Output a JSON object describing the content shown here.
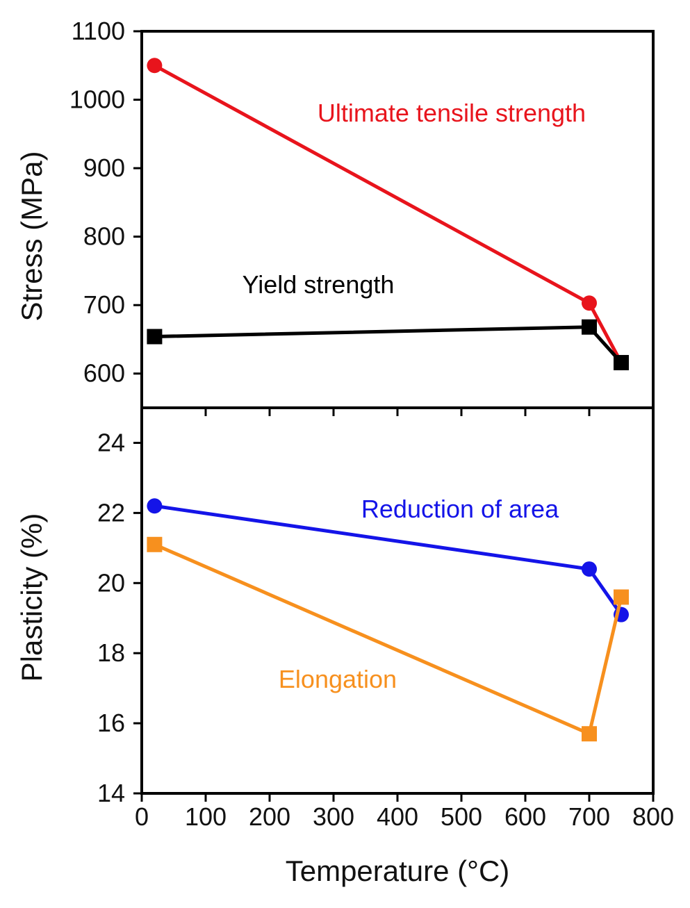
{
  "chart_data": [
    {
      "type": "line",
      "panel": "top",
      "title": "",
      "xlabel": "",
      "ylabel": "Stress (MPa)",
      "xlim": [
        0,
        800
      ],
      "ylim": [
        550,
        1100
      ],
      "y_ticks": [
        600,
        700,
        800,
        900,
        1000,
        1100
      ],
      "y_tick_labels": [
        "600",
        "700",
        "800",
        "900",
        "1000",
        "1100"
      ],
      "grid": false,
      "series": [
        {
          "name": "Ultimate tensile strength",
          "color": "#e8141c",
          "marker": "circle",
          "x": [
            20,
            700,
            750
          ],
          "y": [
            1050,
            703,
            616
          ],
          "annotation": "Ultimate tensile strength"
        },
        {
          "name": "Yield strength",
          "color": "#000000",
          "marker": "square",
          "x": [
            20,
            700,
            750
          ],
          "y": [
            654,
            668,
            616
          ],
          "annotation": "Yield strength"
        }
      ]
    },
    {
      "type": "line",
      "panel": "bottom",
      "title": "",
      "xlabel": "Temperature (°C)",
      "ylabel": "Plasticity (%)",
      "xlim": [
        0,
        800
      ],
      "ylim": [
        14,
        25
      ],
      "x_ticks": [
        0,
        100,
        200,
        300,
        400,
        500,
        600,
        700,
        800
      ],
      "x_tick_labels": [
        "0",
        "100",
        "200",
        "300",
        "400",
        "500",
        "600",
        "700",
        "800"
      ],
      "y_ticks": [
        14,
        16,
        18,
        20,
        22,
        24
      ],
      "y_tick_labels": [
        "14",
        "16",
        "18",
        "20",
        "22",
        "24"
      ],
      "grid": false,
      "series": [
        {
          "name": "Reduction of area",
          "color": "#1414e8",
          "marker": "circle",
          "x": [
            20,
            700,
            750
          ],
          "y": [
            22.2,
            20.4,
            19.1
          ],
          "annotation": "Reduction of area"
        },
        {
          "name": "Elongation",
          "color": "#f7901e",
          "marker": "square",
          "x": [
            20,
            700,
            750
          ],
          "y": [
            21.1,
            15.7,
            19.6
          ],
          "annotation": "Elongation"
        }
      ]
    }
  ]
}
